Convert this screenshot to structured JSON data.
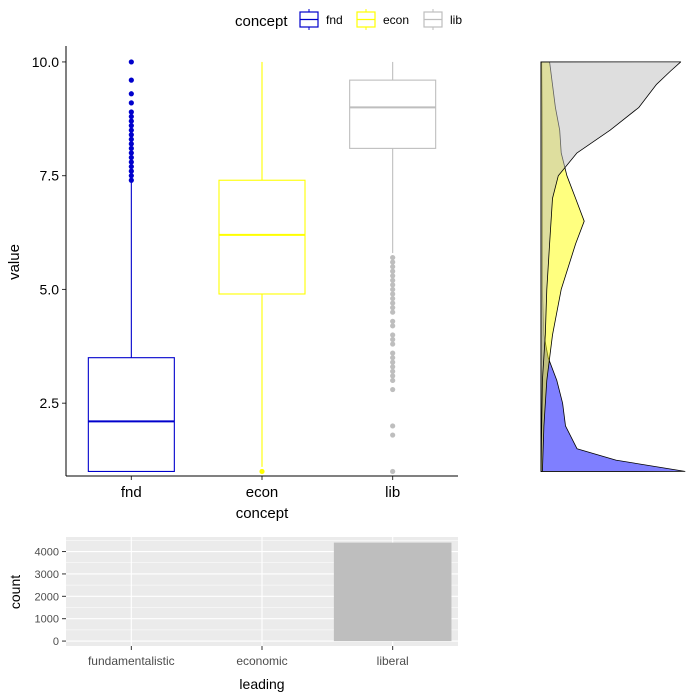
{
  "legend": {
    "title": "concept",
    "entries": [
      {
        "label": "fnd",
        "color": "#0000cc"
      },
      {
        "label": "econ",
        "color": "#ffff00"
      },
      {
        "label": "lib",
        "color": "#bebebe"
      }
    ]
  },
  "chart_data": [
    {
      "type": "box",
      "xlabel": "concept",
      "ylabel": "value",
      "categories": [
        "fnd",
        "econ",
        "lib"
      ],
      "colors": [
        "#0000cc",
        "#ffff00",
        "#bebebe"
      ],
      "ylim": [
        0.9,
        10.35
      ],
      "yticks": [
        2.5,
        5.0,
        7.5,
        10.0
      ],
      "ytick_labels": [
        "2.5",
        "5.0",
        "7.5",
        "10.0"
      ],
      "boxes": [
        {
          "name": "fnd",
          "min": 1.0,
          "q1": 1.0,
          "median": 2.1,
          "q3": 3.5,
          "max": 7.35,
          "outliers": [
            7.4,
            7.5,
            7.6,
            7.7,
            7.8,
            7.9,
            8.0,
            8.1,
            8.2,
            8.3,
            8.4,
            8.5,
            8.6,
            8.7,
            8.8,
            8.9,
            9.1,
            9.3,
            9.6,
            10.0
          ]
        },
        {
          "name": "econ",
          "min": 1.1,
          "q1": 4.9,
          "median": 6.2,
          "q3": 7.4,
          "max": 10.0,
          "outliers": [
            1.0
          ]
        },
        {
          "name": "lib",
          "min": 5.8,
          "q1": 8.1,
          "median": 9.0,
          "q3": 9.6,
          "max": 10.0,
          "outliers": [
            5.7,
            5.6,
            5.5,
            5.4,
            5.3,
            5.2,
            5.1,
            5.0,
            4.9,
            4.8,
            4.7,
            4.6,
            4.5,
            4.3,
            4.2,
            4.0,
            3.9,
            3.8,
            3.6,
            3.5,
            3.4,
            3.3,
            3.2,
            3.1,
            3.0,
            2.8,
            2.0,
            1.8,
            1.0
          ]
        }
      ]
    },
    {
      "type": "density",
      "orientation": "horizontal",
      "ylim": [
        0.9,
        10.35
      ],
      "series": [
        {
          "name": "fnd",
          "color": "#0000ff",
          "opacity": 0.5,
          "points": [
            [
              1.0,
              1.0
            ],
            [
              1.25,
              0.52
            ],
            [
              1.5,
              0.25
            ],
            [
              2.0,
              0.17
            ],
            [
              2.5,
              0.15
            ],
            [
              3.0,
              0.11
            ],
            [
              3.5,
              0.05
            ],
            [
              4.0,
              0.02
            ],
            [
              5.0,
              0.01
            ],
            [
              6.0,
              0.01
            ],
            [
              7.0,
              0.01
            ],
            [
              8.0,
              0.01
            ],
            [
              9.0,
              0.008
            ],
            [
              10.0,
              0.005
            ]
          ]
        },
        {
          "name": "econ",
          "color": "#ffff00",
          "opacity": 0.5,
          "points": [
            [
              1.0,
              0.01
            ],
            [
              2.0,
              0.02
            ],
            [
              3.0,
              0.04
            ],
            [
              4.0,
              0.08
            ],
            [
              5.0,
              0.14
            ],
            [
              6.0,
              0.24
            ],
            [
              6.5,
              0.3
            ],
            [
              7.0,
              0.24
            ],
            [
              7.5,
              0.18
            ],
            [
              8.0,
              0.14
            ],
            [
              8.5,
              0.13
            ],
            [
              9.0,
              0.1
            ],
            [
              9.5,
              0.08
            ],
            [
              10.0,
              0.06
            ]
          ]
        },
        {
          "name": "lib",
          "color": "#bebebe",
          "opacity": 0.5,
          "points": [
            [
              1.0,
              0.0
            ],
            [
              3.0,
              0.01
            ],
            [
              4.0,
              0.03
            ],
            [
              5.0,
              0.04
            ],
            [
              6.0,
              0.06
            ],
            [
              7.0,
              0.08
            ],
            [
              7.5,
              0.12
            ],
            [
              8.0,
              0.25
            ],
            [
              8.5,
              0.48
            ],
            [
              9.0,
              0.68
            ],
            [
              9.5,
              0.8
            ],
            [
              9.8,
              0.9
            ],
            [
              10.0,
              0.97
            ]
          ]
        }
      ]
    },
    {
      "type": "bar",
      "xlabel": "leading",
      "ylabel": "count",
      "categories": [
        "fundamentalistic",
        "economic",
        "liberal"
      ],
      "values": [
        0,
        0,
        4400
      ],
      "bar_color": "#bebebe",
      "ylim": [
        -220,
        4650
      ],
      "yticks": [
        0,
        1000,
        2000,
        3000,
        4000
      ],
      "ytick_labels": [
        "0",
        "1000",
        "2000",
        "3000",
        "4000"
      ]
    }
  ]
}
